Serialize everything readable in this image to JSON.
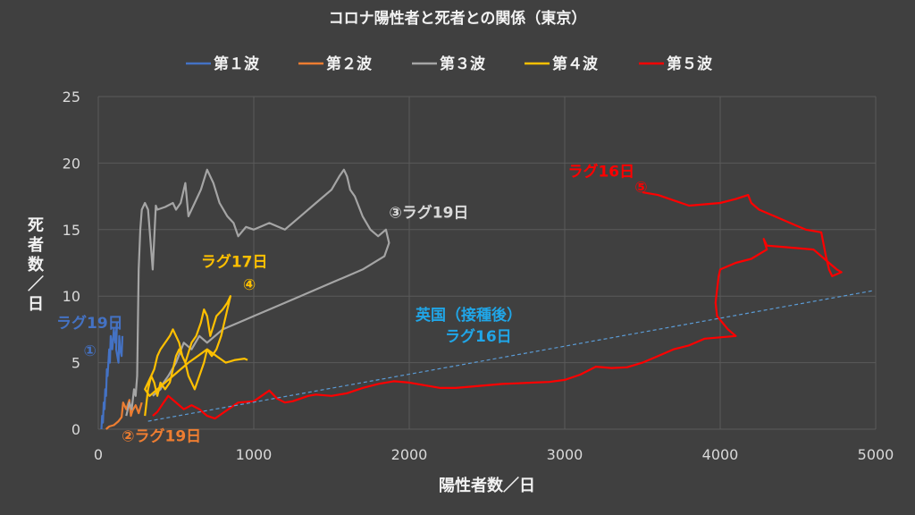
{
  "chart_data": {
    "type": "line",
    "title": "コロナ陽性者と死者との関係（東京）",
    "xlabel": "陽性者数／日",
    "ylabel": [
      "死",
      "者",
      "数",
      "／",
      "日"
    ],
    "xlim": [
      0,
      5000
    ],
    "ylim": [
      0,
      25
    ],
    "xticks": [
      "0",
      "1000",
      "2000",
      "3000",
      "4000",
      "5000"
    ],
    "yticks": [
      "0",
      "5",
      "10",
      "15",
      "20",
      "25"
    ],
    "grid": true,
    "legend_position": "top",
    "series": [
      {
        "name": "第１波",
        "color": "#4472c4",
        "points": [
          [
            20,
            0
          ],
          [
            25,
            1
          ],
          [
            30,
            0.5
          ],
          [
            35,
            2
          ],
          [
            40,
            1.5
          ],
          [
            45,
            3
          ],
          [
            50,
            2.5
          ],
          [
            55,
            4.5
          ],
          [
            60,
            4
          ],
          [
            70,
            6
          ],
          [
            75,
            5
          ],
          [
            80,
            7
          ],
          [
            90,
            6
          ],
          [
            100,
            7.5
          ],
          [
            110,
            6.5
          ],
          [
            120,
            8
          ],
          [
            115,
            6
          ],
          [
            130,
            5
          ],
          [
            135,
            7
          ],
          [
            140,
            6
          ],
          [
            150,
            5.5
          ],
          [
            155,
            7
          ]
        ]
      },
      {
        "name": "第２波",
        "color": "#ed7d31",
        "points": [
          [
            50,
            0
          ],
          [
            70,
            0.2
          ],
          [
            100,
            0.3
          ],
          [
            130,
            0.6
          ],
          [
            150,
            0.9
          ],
          [
            160,
            2
          ],
          [
            180,
            1.5
          ],
          [
            200,
            2.2
          ],
          [
            210,
            1
          ],
          [
            220,
            1.4
          ],
          [
            240,
            1.8
          ],
          [
            260,
            1.2
          ],
          [
            280,
            2
          ]
        ]
      },
      {
        "name": "第３波",
        "color": "#a5a5a5",
        "points": [
          [
            180,
            1
          ],
          [
            200,
            2
          ],
          [
            215,
            1.5
          ],
          [
            230,
            3
          ],
          [
            240,
            2.5
          ],
          [
            250,
            4
          ],
          [
            260,
            12
          ],
          [
            270,
            15
          ],
          [
            280,
            16.5
          ],
          [
            300,
            17
          ],
          [
            320,
            16.5
          ],
          [
            350,
            12
          ],
          [
            370,
            16.8
          ],
          [
            380,
            16.5
          ],
          [
            430,
            16.7
          ],
          [
            480,
            17
          ],
          [
            500,
            16.5
          ],
          [
            530,
            17
          ],
          [
            560,
            18.5
          ],
          [
            580,
            16
          ],
          [
            620,
            17
          ],
          [
            660,
            18
          ],
          [
            700,
            19.5
          ],
          [
            740,
            18.5
          ],
          [
            780,
            17
          ],
          [
            830,
            16
          ],
          [
            870,
            15.5
          ],
          [
            900,
            14.5
          ],
          [
            950,
            15.2
          ],
          [
            1000,
            15
          ],
          [
            1100,
            15.5
          ],
          [
            1200,
            15
          ],
          [
            1300,
            16
          ],
          [
            1400,
            17
          ],
          [
            1500,
            18
          ],
          [
            1550,
            19
          ],
          [
            1580,
            19.5
          ],
          [
            1600,
            19
          ],
          [
            1620,
            18
          ],
          [
            1650,
            17.5
          ],
          [
            1700,
            16
          ],
          [
            1750,
            15
          ],
          [
            1800,
            14.5
          ],
          [
            1850,
            15
          ],
          [
            1870,
            14
          ],
          [
            1840,
            13
          ],
          [
            1700,
            12
          ],
          [
            1500,
            11
          ],
          [
            1300,
            10
          ],
          [
            1100,
            9
          ],
          [
            1000,
            8.5
          ],
          [
            900,
            8
          ],
          [
            800,
            7.5
          ],
          [
            700,
            6.5
          ],
          [
            650,
            7
          ],
          [
            600,
            6
          ],
          [
            550,
            6.5
          ],
          [
            500,
            5
          ],
          [
            450,
            4
          ],
          [
            420,
            3.5
          ],
          [
            400,
            3
          ],
          [
            350,
            2.5
          ]
        ]
      },
      {
        "name": "第４波",
        "color": "#ffc000",
        "points": [
          [
            300,
            1
          ],
          [
            320,
            3
          ],
          [
            340,
            4
          ],
          [
            360,
            3.5
          ],
          [
            380,
            2.5
          ],
          [
            400,
            3.5
          ],
          [
            430,
            3
          ],
          [
            460,
            3.5
          ],
          [
            500,
            5.5
          ],
          [
            520,
            6
          ],
          [
            560,
            5
          ],
          [
            600,
            6.5
          ],
          [
            630,
            7
          ],
          [
            660,
            8
          ],
          [
            680,
            9
          ],
          [
            700,
            8.5
          ],
          [
            720,
            7
          ],
          [
            760,
            8.5
          ],
          [
            800,
            9
          ],
          [
            830,
            9.5
          ],
          [
            850,
            10
          ],
          [
            820,
            8.5
          ],
          [
            790,
            7
          ],
          [
            760,
            6
          ],
          [
            730,
            5.5
          ],
          [
            700,
            6
          ],
          [
            680,
            5
          ],
          [
            650,
            4
          ],
          [
            620,
            3
          ],
          [
            600,
            3.5
          ],
          [
            580,
            4
          ],
          [
            560,
            5
          ],
          [
            540,
            5.5
          ],
          [
            520,
            6.5
          ],
          [
            500,
            7
          ],
          [
            480,
            7.5
          ],
          [
            460,
            7
          ],
          [
            430,
            6.5
          ],
          [
            400,
            6
          ],
          [
            380,
            5.5
          ],
          [
            360,
            4.5
          ],
          [
            340,
            4
          ],
          [
            320,
            3.5
          ],
          [
            300,
            3
          ],
          [
            330,
            2.5
          ],
          [
            380,
            3
          ],
          [
            430,
            3.5
          ],
          [
            480,
            4
          ],
          [
            530,
            4.5
          ],
          [
            580,
            5
          ],
          [
            640,
            5.5
          ],
          [
            700,
            6
          ],
          [
            760,
            5.5
          ],
          [
            820,
            5
          ],
          [
            880,
            5.2
          ],
          [
            940,
            5.3
          ],
          [
            960,
            5.2
          ]
        ]
      },
      {
        "name": "第５波",
        "color": "#ff0000",
        "points": [
          [
            350,
            1
          ],
          [
            380,
            1.3
          ],
          [
            420,
            2
          ],
          [
            450,
            2.5
          ],
          [
            500,
            2
          ],
          [
            550,
            1.5
          ],
          [
            600,
            1.8
          ],
          [
            650,
            1.5
          ],
          [
            700,
            1
          ],
          [
            750,
            0.8
          ],
          [
            800,
            1.2
          ],
          [
            900,
            2
          ],
          [
            1000,
            2.1
          ],
          [
            1050,
            2.5
          ],
          [
            1100,
            2.9
          ],
          [
            1150,
            2.3
          ],
          [
            1200,
            2
          ],
          [
            1250,
            2.1
          ],
          [
            1300,
            2.3
          ],
          [
            1350,
            2.5
          ],
          [
            1400,
            2.6
          ],
          [
            1500,
            2.5
          ],
          [
            1600,
            2.7
          ],
          [
            1700,
            3.1
          ],
          [
            1800,
            3.4
          ],
          [
            1900,
            3.6
          ],
          [
            2000,
            3.5
          ],
          [
            2100,
            3.3
          ],
          [
            2200,
            3.1
          ],
          [
            2300,
            3.1
          ],
          [
            2400,
            3.2
          ],
          [
            2500,
            3.3
          ],
          [
            2600,
            3.4
          ],
          [
            2700,
            3.45
          ],
          [
            2800,
            3.5
          ],
          [
            2900,
            3.55
          ],
          [
            3000,
            3.7
          ],
          [
            3100,
            4.1
          ],
          [
            3200,
            4.7
          ],
          [
            3300,
            4.6
          ],
          [
            3400,
            4.65
          ],
          [
            3500,
            5
          ],
          [
            3600,
            5.5
          ],
          [
            3700,
            6
          ],
          [
            3800,
            6.3
          ],
          [
            3900,
            6.8
          ],
          [
            4000,
            6.9
          ],
          [
            4100,
            7
          ],
          [
            4050,
            7.5
          ],
          [
            3980,
            8.5
          ],
          [
            3970,
            9.5
          ],
          [
            3980,
            10.5
          ],
          [
            3990,
            11.5
          ],
          [
            4000,
            12
          ],
          [
            4100,
            12.5
          ],
          [
            4200,
            12.8
          ],
          [
            4300,
            13.5
          ],
          [
            4280,
            14.3
          ],
          [
            4300,
            13.8
          ],
          [
            4400,
            13.7
          ],
          [
            4600,
            13.5
          ],
          [
            4700,
            12.5
          ],
          [
            4750,
            12
          ],
          [
            4780,
            11.8
          ],
          [
            4720,
            11.5
          ],
          [
            4700,
            12
          ],
          [
            4680,
            13
          ],
          [
            4650,
            14.8
          ],
          [
            4550,
            15
          ],
          [
            4450,
            15.5
          ],
          [
            4350,
            16
          ],
          [
            4250,
            16.5
          ],
          [
            4200,
            17
          ],
          [
            4180,
            17.6
          ],
          [
            4100,
            17.3
          ],
          [
            4000,
            17
          ],
          [
            3800,
            16.8
          ],
          [
            3700,
            17.2
          ],
          [
            3600,
            17.6
          ],
          [
            3500,
            17.8
          ]
        ]
      },
      {
        "name": "英国（接種後）",
        "color": "#5b9bd5",
        "style": "dashed",
        "points": [
          [
            320,
            0.6
          ],
          [
            4980,
            10.4
          ]
        ]
      }
    ],
    "annotations": [
      {
        "text": "ラグ19日",
        "color": "#4472c4",
        "x": -270,
        "y": 7.6
      },
      {
        "text": "①",
        "color": "#4472c4",
        "x": -95,
        "y": 5.5
      },
      {
        "text": "②ラグ19日",
        "color": "#ed7d31",
        "x": 150,
        "y": -0.9
      },
      {
        "text": "③ラグ19日",
        "color": "#d9d9d9",
        "x": 1870,
        "y": 15.9
      },
      {
        "text": "ラグ17日",
        "color": "#ffc000",
        "x": 660,
        "y": 12.2
      },
      {
        "text": "④",
        "color": "#ffc000",
        "x": 930,
        "y": 10.5
      },
      {
        "text": "ラグ16日",
        "color": "#ff0000",
        "x": 3020,
        "y": 19
      },
      {
        "text": "⑤",
        "color": "#ff0000",
        "x": 3450,
        "y": 17.8
      },
      {
        "text": "英国（接種後）",
        "color": "#20a6e8",
        "x": 2040,
        "y": 8.2
      },
      {
        "text": "ラグ16日",
        "color": "#20a6e8",
        "x": 2230,
        "y": 6.6
      }
    ]
  }
}
